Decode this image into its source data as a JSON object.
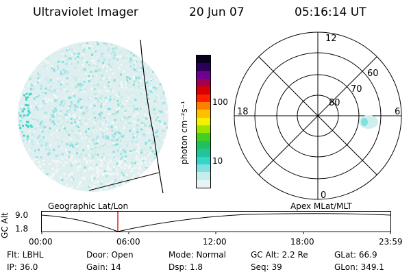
{
  "header": {
    "title": "Ultraviolet Imager",
    "date": "20 Jun 07",
    "time": "05:16:14 UT"
  },
  "colorbar": {
    "unit_label": "photon cm⁻²s⁻¹",
    "ticks": [
      "100",
      "10"
    ],
    "colors": [
      "#e8f4f4",
      "#c7ecec",
      "#7fe0e0",
      "#33d6c8",
      "#22c49a",
      "#20c060",
      "#44d020",
      "#9ce400",
      "#f4f000",
      "#ffc000",
      "#ff8000",
      "#ff2000",
      "#d80000",
      "#a00050",
      "#700090",
      "#2a005a",
      "#0a0020"
    ]
  },
  "polar": {
    "mlt_labels": {
      "top": "12",
      "left": "18",
      "right": "6",
      "bottom": "0"
    },
    "lat_labels": [
      "60",
      "70",
      "80"
    ]
  },
  "timeline": {
    "y_axis_label": "GC Alt",
    "y_ticks": [
      "9.0",
      "1.8"
    ],
    "left_caption": "Geographic Lat/Lon",
    "right_caption": "Apex MLat/MLT",
    "x_ticks": [
      "00:00",
      "06:00",
      "12:00",
      "18:00",
      "23:59"
    ],
    "marker_color": "#cc0000"
  },
  "info": {
    "flt": "Flt: LBHL",
    "ip": "IP: 36.0",
    "door": "Door: Open",
    "gain": "Gain: 14",
    "mode": "Mode: Normal",
    "dsp": "Dsp:     1.8",
    "gcalt": "GC Alt: 2.2 Re",
    "seq": "Seq: 39",
    "glat": "GLat:  66.9",
    "glon": "GLon: 349.1"
  }
}
